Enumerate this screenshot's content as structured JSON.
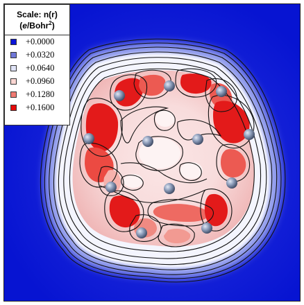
{
  "legend": {
    "title_line1": "Scale: n(r)",
    "unit_open": "(",
    "unit_italic": "e",
    "unit_main": "/Bohr",
    "unit_sup": "2",
    "unit_close": ")",
    "entries": [
      {
        "label": "+0.0000",
        "color": "#0a14d8"
      },
      {
        "label": "+0.0320",
        "color": "#7078d8"
      },
      {
        "label": "+0.0640",
        "color": "#dfe3f7"
      },
      {
        "label": "+0.0960",
        "color": "#fbd7d3"
      },
      {
        "label": "+0.1280",
        "color": "#f07a72"
      },
      {
        "label": "+0.1600",
        "color": "#e40a0a"
      }
    ]
  },
  "colors": {
    "background": "#0714d2",
    "contour_line": "#111111",
    "atom": "#8898b4",
    "low_density": "#ffffff",
    "mid_density": "#f5c8c6",
    "high_density": "#e31a1a"
  }
}
